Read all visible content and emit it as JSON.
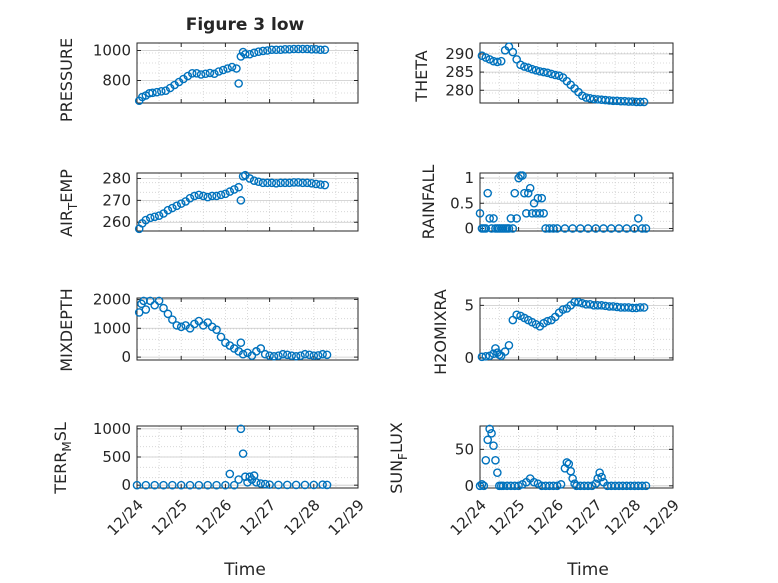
{
  "figure": {
    "title": "Figure 3 low",
    "xlabel_left": "Time",
    "xlabel_right": "Time"
  },
  "chart_data": [
    {
      "type": "scatter",
      "name": "pressure-panel",
      "ylabel": "PRESSURE",
      "ylim": [
        650,
        1050
      ],
      "yticks": [
        800,
        1000
      ],
      "xlim": [
        0,
        5
      ],
      "grid": true,
      "color": "#0072BD",
      "x": [
        0.05,
        0.12,
        0.2,
        0.28,
        0.35,
        0.45,
        0.55,
        0.65,
        0.75,
        0.85,
        0.95,
        1.05,
        1.15,
        1.25,
        1.35,
        1.45,
        1.55,
        1.65,
        1.75,
        1.85,
        1.95,
        2.05,
        2.15,
        2.25,
        2.3,
        2.35,
        2.4,
        2.45,
        2.55,
        2.65,
        2.75,
        2.85,
        2.95,
        3.05,
        3.15,
        3.25,
        3.35,
        3.45,
        3.55,
        3.65,
        3.75,
        3.85,
        3.95,
        4.05,
        4.15,
        4.25
      ],
      "y": [
        665,
        690,
        700,
        715,
        718,
        722,
        728,
        732,
        750,
        770,
        790,
        810,
        830,
        848,
        848,
        840,
        845,
        850,
        845,
        860,
        870,
        880,
        890,
        880,
        780,
        960,
        990,
        975,
        975,
        985,
        992,
        997,
        1000,
        1005,
        1005,
        1005,
        1008,
        1008,
        1010,
        1010,
        1010,
        1010,
        1008,
        1008,
        1005,
        1005
      ]
    },
    {
      "type": "scatter",
      "name": "theta-panel",
      "ylabel": "THETA",
      "ylim": [
        276.5,
        293
      ],
      "yticks": [
        280,
        285,
        290
      ],
      "xlim": [
        0,
        5
      ],
      "grid": true,
      "color": "#0072BD",
      "x": [
        0.05,
        0.15,
        0.25,
        0.35,
        0.45,
        0.55,
        0.65,
        0.75,
        0.85,
        0.95,
        1.05,
        1.15,
        1.25,
        1.35,
        1.45,
        1.55,
        1.65,
        1.75,
        1.85,
        1.95,
        2.05,
        2.15,
        2.25,
        2.35,
        2.45,
        2.55,
        2.65,
        2.75,
        2.85,
        2.95,
        3.05,
        3.15,
        3.25,
        3.35,
        3.45,
        3.55,
        3.65,
        3.75,
        3.85,
        3.95,
        4.05,
        4.15,
        4.25
      ],
      "y": [
        289.5,
        289,
        288.5,
        288,
        287.8,
        288,
        291,
        292,
        290.5,
        288.5,
        287,
        286.5,
        286.2,
        285.8,
        285.5,
        285.2,
        285,
        284.8,
        284.5,
        284.2,
        284,
        283.5,
        282.5,
        281.5,
        280.5,
        279.5,
        278.5,
        278,
        277.8,
        277.6,
        277.5,
        277.4,
        277.3,
        277.2,
        277.1,
        277.1,
        277,
        277,
        276.9,
        276.9,
        276.8,
        276.8,
        276.8
      ]
    },
    {
      "type": "scatter",
      "name": "air-temp-panel",
      "ylabel": "AIR_TEMP",
      "ylim": [
        256,
        282.5
      ],
      "yticks": [
        260,
        270,
        280
      ],
      "xlim": [
        0,
        5
      ],
      "grid": true,
      "color": "#0072BD",
      "x": [
        0.05,
        0.12,
        0.2,
        0.3,
        0.4,
        0.5,
        0.6,
        0.7,
        0.8,
        0.9,
        1.0,
        1.1,
        1.2,
        1.3,
        1.4,
        1.5,
        1.6,
        1.7,
        1.8,
        1.9,
        2.0,
        2.1,
        2.2,
        2.3,
        2.35,
        2.4,
        2.45,
        2.55,
        2.65,
        2.75,
        2.85,
        2.95,
        3.05,
        3.15,
        3.25,
        3.35,
        3.45,
        3.55,
        3.65,
        3.75,
        3.85,
        3.95,
        4.05,
        4.15,
        4.25
      ],
      "y": [
        257,
        259.5,
        261,
        262,
        262.5,
        263,
        264,
        265.5,
        266.5,
        267.5,
        268.5,
        269.5,
        271,
        272,
        272.5,
        272,
        271.5,
        272,
        272,
        272.5,
        273,
        274,
        275,
        276,
        270,
        281,
        281.5,
        280,
        279,
        278.5,
        278,
        278,
        278,
        277.8,
        278,
        278,
        278,
        278.2,
        278.2,
        278,
        278,
        277.8,
        277.5,
        277.2,
        277
      ]
    },
    {
      "type": "scatter",
      "name": "rainfall-panel",
      "ylabel": "RAINFALL",
      "ylim": [
        -0.05,
        1.1
      ],
      "yticks": [
        0,
        0.5,
        1
      ],
      "xlim": [
        0,
        5
      ],
      "grid": true,
      "color": "#0072BD",
      "x": [
        0.0,
        0.05,
        0.1,
        0.15,
        0.2,
        0.25,
        0.3,
        0.35,
        0.4,
        0.45,
        0.5,
        0.55,
        0.6,
        0.65,
        0.7,
        0.75,
        0.8,
        0.85,
        0.9,
        0.95,
        1.0,
        1.05,
        1.1,
        1.15,
        1.2,
        1.25,
        1.3,
        1.35,
        1.4,
        1.45,
        1.5,
        1.55,
        1.6,
        1.65,
        1.7,
        1.8,
        1.9,
        2.0,
        2.2,
        2.4,
        2.6,
        2.8,
        3.0,
        3.2,
        3.4,
        3.6,
        3.8,
        4.0,
        4.1,
        4.2,
        4.3
      ],
      "y": [
        0.3,
        0,
        0,
        0,
        0.7,
        0.2,
        0,
        0.2,
        0,
        0,
        0,
        0,
        0,
        0,
        0,
        0,
        0.2,
        0,
        0.7,
        0.2,
        1.0,
        1.05,
        1.05,
        0.7,
        0.3,
        0.7,
        0.8,
        0.3,
        0.5,
        0.3,
        0.6,
        0.3,
        0.6,
        0.3,
        0,
        0,
        0,
        0,
        0,
        0,
        0,
        0,
        0,
        0,
        0,
        0,
        0,
        0,
        0.2,
        0,
        0
      ]
    },
    {
      "type": "scatter",
      "name": "mixdepth-panel",
      "ylabel": "MIXDEPTH",
      "ylim": [
        -100,
        2050
      ],
      "yticks": [
        0,
        1000,
        2000
      ],
      "xlim": [
        0,
        5
      ],
      "grid": true,
      "color": "#0072BD",
      "x": [
        0.05,
        0.1,
        0.15,
        0.2,
        0.3,
        0.4,
        0.5,
        0.6,
        0.7,
        0.8,
        0.9,
        1.0,
        1.1,
        1.2,
        1.3,
        1.4,
        1.5,
        1.6,
        1.7,
        1.8,
        1.9,
        2.0,
        2.1,
        2.2,
        2.3,
        2.35,
        2.4,
        2.5,
        2.6,
        2.7,
        2.8,
        2.9,
        3.0,
        3.1,
        3.2,
        3.3,
        3.4,
        3.5,
        3.6,
        3.7,
        3.8,
        3.9,
        4.0,
        4.1,
        4.2,
        4.3
      ],
      "y": [
        1550,
        1850,
        1950,
        1650,
        1950,
        1800,
        1950,
        1700,
        1500,
        1300,
        1100,
        1050,
        1100,
        1000,
        1150,
        1250,
        1100,
        1200,
        1050,
        950,
        700,
        500,
        400,
        300,
        200,
        500,
        100,
        150,
        50,
        200,
        300,
        100,
        50,
        30,
        50,
        100,
        80,
        50,
        30,
        50,
        100,
        80,
        50,
        60,
        100,
        80
      ]
    },
    {
      "type": "scatter",
      "name": "h2omixra-panel",
      "ylabel": "H2OMIXRA",
      "ylim": [
        -0.2,
        5.7
      ],
      "yticks": [
        0,
        5
      ],
      "xlim": [
        0,
        5
      ],
      "grid": true,
      "color": "#0072BD",
      "x": [
        0.05,
        0.15,
        0.25,
        0.35,
        0.4,
        0.45,
        0.5,
        0.55,
        0.65,
        0.75,
        0.85,
        0.95,
        1.05,
        1.15,
        1.25,
        1.35,
        1.45,
        1.55,
        1.65,
        1.75,
        1.85,
        1.95,
        2.05,
        2.15,
        2.25,
        2.35,
        2.45,
        2.55,
        2.65,
        2.75,
        2.85,
        2.95,
        3.05,
        3.15,
        3.25,
        3.35,
        3.45,
        3.55,
        3.65,
        3.75,
        3.85,
        3.95,
        4.05,
        4.15,
        4.25
      ],
      "y": [
        0.1,
        0.15,
        0.2,
        0.4,
        0.9,
        0.5,
        0.3,
        0.2,
        0.6,
        1.2,
        3.6,
        4.1,
        4.0,
        3.8,
        3.6,
        3.4,
        3.2,
        3.0,
        3.3,
        3.5,
        3.6,
        3.9,
        4.3,
        4.6,
        4.7,
        5.0,
        5.3,
        5.3,
        5.2,
        5.1,
        5.1,
        5.0,
        5.0,
        5.0,
        4.95,
        4.9,
        4.9,
        4.85,
        4.8,
        4.8,
        4.8,
        4.75,
        4.75,
        4.8,
        4.8
      ]
    },
    {
      "type": "scatter",
      "name": "terr-msl-panel",
      "ylabel": "TERR_MSL",
      "ylim": [
        -50,
        1050
      ],
      "yticks": [
        0,
        500,
        1000
      ],
      "xlim": [
        0,
        5
      ],
      "grid": true,
      "color": "#0072BD",
      "x": [
        0.0,
        0.2,
        0.4,
        0.6,
        0.8,
        1.0,
        1.2,
        1.4,
        1.6,
        1.8,
        2.0,
        2.1,
        2.2,
        2.3,
        2.35,
        2.4,
        2.45,
        2.5,
        2.55,
        2.6,
        2.65,
        2.7,
        2.8,
        2.9,
        3.0,
        3.2,
        3.4,
        3.6,
        3.8,
        4.0,
        4.2,
        4.3
      ],
      "y": [
        0,
        0,
        0,
        0,
        0,
        0,
        0,
        0,
        0,
        0,
        0,
        200,
        0,
        100,
        1000,
        560,
        150,
        50,
        150,
        100,
        170,
        50,
        30,
        20,
        10,
        5,
        5,
        5,
        5,
        5,
        10,
        5
      ]
    },
    {
      "type": "scatter",
      "name": "sun-flux-panel",
      "ylabel": "SUN_FLUX",
      "ylim": [
        -3,
        82
      ],
      "yticks": [
        0,
        50
      ],
      "xlim": [
        0,
        5
      ],
      "grid": true,
      "color": "#0072BD",
      "x": [
        0.0,
        0.05,
        0.1,
        0.15,
        0.2,
        0.25,
        0.3,
        0.35,
        0.4,
        0.45,
        0.5,
        0.55,
        0.6,
        0.7,
        0.8,
        0.9,
        1.0,
        1.1,
        1.2,
        1.3,
        1.4,
        1.5,
        1.6,
        1.7,
        1.8,
        1.9,
        2.0,
        2.1,
        2.2,
        2.25,
        2.3,
        2.35,
        2.4,
        2.45,
        2.5,
        2.6,
        2.7,
        2.8,
        2.9,
        3.0,
        3.05,
        3.1,
        3.15,
        3.2,
        3.3,
        3.4,
        3.5,
        3.6,
        3.7,
        3.8,
        3.9,
        4.0,
        4.1,
        4.2,
        4.3
      ],
      "y": [
        0,
        2,
        0,
        35,
        63,
        78,
        72,
        55,
        35,
        18,
        0,
        0,
        0,
        0,
        0,
        0,
        0,
        2,
        5,
        10,
        5,
        3,
        0,
        0,
        0,
        0,
        0,
        2,
        24,
        32,
        30,
        20,
        10,
        3,
        0,
        0,
        0,
        0,
        0,
        3,
        10,
        18,
        12,
        5,
        0,
        0,
        0,
        0,
        0,
        0,
        0,
        0,
        0,
        0,
        0
      ]
    }
  ],
  "xaxis": {
    "ticks": [
      "12/24",
      "12/25",
      "12/26",
      "12/27",
      "12/28",
      "12/29"
    ]
  }
}
